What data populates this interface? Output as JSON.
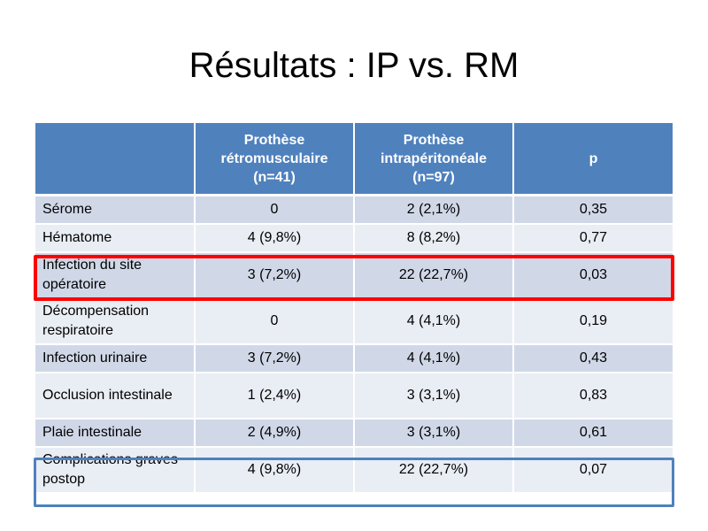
{
  "slide": {
    "title": "Résultats : IP vs. RM"
  },
  "table": {
    "headers": [
      "",
      "Prothèse rétromusculaire (n=41)",
      "Prothèse intrapéritonéale (n=97)",
      "p"
    ],
    "rows": [
      [
        "Sérome",
        "0",
        "2 (2,1%)",
        "0,35"
      ],
      [
        "Hématome",
        "4 (9,8%)",
        "8 (8,2%)",
        "0,77"
      ],
      [
        "Infection du site opératoire",
        "3 (7,2%)",
        "22 (22,7%)",
        "0,03"
      ],
      [
        "Décompensation respiratoire",
        "0",
        "4 (4,1%)",
        "0,19"
      ],
      [
        "Infection urinaire",
        "3 (7,2%)",
        "4 (4,1%)",
        "0,43"
      ],
      [
        "Occlusion intestinale",
        "1 (2,4%)",
        "3 (3,1%)",
        "0,83"
      ],
      [
        "Plaie intestinale",
        "2 (4,9%)",
        "3 (3,1%)",
        "0,61"
      ],
      [
        "Complications graves postop",
        "4 (9,8%)",
        "22 (22,7%)",
        "0,07"
      ]
    ],
    "highlights": [
      {
        "row": "Infection du site opératoire",
        "color": "#ff0000"
      },
      {
        "row": "Complications graves postop",
        "color": "#4f81bd"
      }
    ]
  },
  "colors": {
    "header_bg": "#4f81bd",
    "row_odd": "#d0d8e8",
    "row_even": "#e9edf4"
  }
}
